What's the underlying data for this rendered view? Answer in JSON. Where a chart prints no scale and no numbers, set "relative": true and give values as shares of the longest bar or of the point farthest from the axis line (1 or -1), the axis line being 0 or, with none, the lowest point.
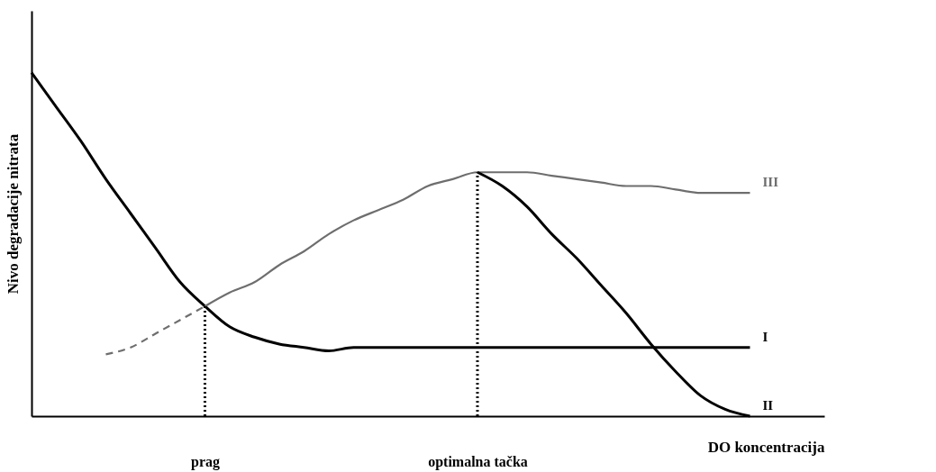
{
  "chart_data": {
    "type": "line",
    "relative": true,
    "xlabel": "DO koncentracija",
    "ylabel": "Nivo degradacije nitrata",
    "grid": false,
    "marker": "none",
    "tick_labels": "x",
    "categories": [
      null,
      null,
      null,
      null,
      null,
      null,
      null,
      "prag",
      null,
      null,
      null,
      null,
      null,
      null,
      null,
      null,
      null,
      null,
      "optimalna tačka",
      null,
      null,
      null,
      null,
      null,
      null,
      null,
      null,
      null,
      null,
      null,
      null,
      null,
      null
    ],
    "series": [
      {
        "name": "I",
        "color": "#000000",
        "values": [
          1.0,
          0.9,
          0.8,
          0.69,
          0.59,
          0.49,
          0.39,
          0.32,
          0.26,
          0.23,
          0.21,
          0.2,
          0.19,
          0.2,
          0.2,
          0.2,
          0.2,
          0.2,
          0.2,
          0.2,
          0.2,
          0.2,
          0.2,
          0.2,
          0.2,
          0.2,
          0.2,
          0.2,
          0.2,
          0.2,
          null,
          null,
          null
        ]
      },
      {
        "color": "#6e6e6e",
        "line_style": "dashed",
        "values": [
          null,
          null,
          null,
          0.18,
          0.2,
          0.24,
          0.28,
          0.32,
          null,
          null,
          null,
          null,
          null,
          null,
          null,
          null,
          null,
          null,
          null,
          null,
          null,
          null,
          null,
          null,
          null,
          null,
          null,
          null,
          null,
          null,
          null,
          null,
          null
        ]
      },
      {
        "name": "III",
        "color": "#6e6e6e",
        "values": [
          null,
          null,
          null,
          null,
          null,
          null,
          null,
          0.32,
          0.36,
          0.39,
          0.44,
          0.48,
          0.53,
          0.57,
          0.6,
          0.63,
          0.67,
          0.69,
          0.71,
          0.71,
          0.71,
          0.7,
          0.69,
          0.68,
          0.67,
          0.67,
          0.66,
          0.65,
          0.65,
          0.65,
          null,
          null,
          null
        ]
      },
      {
        "name": "II",
        "color": "#000000",
        "values": [
          null,
          null,
          null,
          null,
          null,
          null,
          null,
          null,
          null,
          null,
          null,
          null,
          null,
          null,
          null,
          null,
          null,
          null,
          0.71,
          0.67,
          0.61,
          0.53,
          0.46,
          0.38,
          0.3,
          0.21,
          0.13,
          0.06,
          0.02,
          0,
          null,
          null,
          null
        ]
      }
    ],
    "ref_lines": [
      {
        "axis": "x",
        "value": "prag",
        "line_style": "dotted",
        "color": "#000000"
      },
      {
        "axis": "x",
        "value": "optimalna tačka",
        "line_style": "dotted",
        "color": "#000000"
      }
    ]
  }
}
